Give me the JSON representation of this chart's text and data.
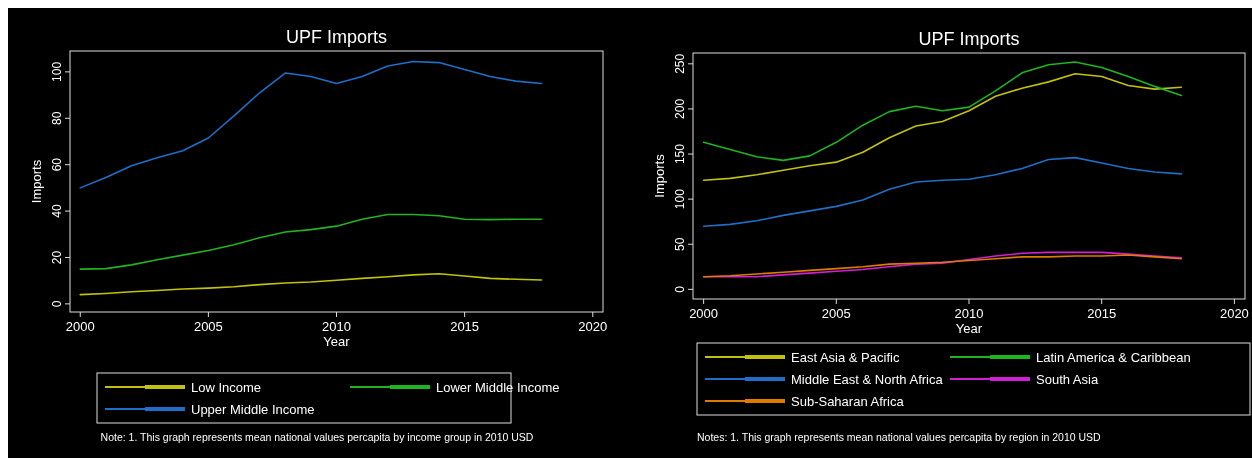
{
  "chart_data": [
    {
      "type": "line",
      "title": "UPF Imports",
      "xlabel": "Year",
      "ylabel": "Imports",
      "x": [
        2000,
        2001,
        2002,
        2003,
        2004,
        2005,
        2006,
        2007,
        2008,
        2009,
        2010,
        2011,
        2012,
        2013,
        2014,
        2015,
        2016,
        2017,
        2018
      ],
      "xlim": [
        1999.6,
        2020.4
      ],
      "xticks": [
        2000,
        2005,
        2010,
        2015,
        2020
      ],
      "ylim": [
        -3.5,
        109
      ],
      "yticks": [
        0,
        20,
        40,
        60,
        80,
        100
      ],
      "grid": false,
      "legend": "bottom",
      "annotations": [
        "Note: 1. This graph represents mean national values percapita by income group in 2010 USD"
      ],
      "series": [
        {
          "name": "Low Income",
          "color": "#c2c20e",
          "values": [
            4,
            4.5,
            5.2,
            5.8,
            6.4,
            6.8,
            7.4,
            8.3,
            9,
            9.4,
            10.2,
            11,
            11.7,
            12.5,
            13,
            12,
            11,
            10.6,
            10.3
          ]
        },
        {
          "name": "Lower Middle Income",
          "color": "#1fb51f",
          "values": [
            15,
            15.2,
            16.8,
            19,
            21,
            23,
            25.5,
            28.5,
            31,
            32,
            33.5,
            36.5,
            38.5,
            38.5,
            38,
            36.5,
            36.3,
            36.5,
            36.5
          ]
        },
        {
          "name": "Upper Middle Income",
          "color": "#1f6fc8",
          "values": [
            50,
            54.5,
            59.5,
            63,
            66,
            71.5,
            81,
            91,
            99.5,
            98,
            95,
            98,
            102.5,
            104.5,
            104,
            101,
            98,
            96,
            95
          ]
        }
      ]
    },
    {
      "type": "line",
      "title": "UPF Imports",
      "xlabel": "Year",
      "ylabel": "Imports",
      "x": [
        2000,
        2001,
        2002,
        2003,
        2004,
        2005,
        2006,
        2007,
        2008,
        2009,
        2010,
        2011,
        2012,
        2013,
        2014,
        2015,
        2016,
        2017,
        2018
      ],
      "xlim": [
        1999.6,
        2020.4
      ],
      "xticks": [
        2000,
        2005,
        2010,
        2015,
        2020
      ],
      "ylim": [
        -10.7,
        262
      ],
      "yticks": [
        0,
        50,
        100,
        150,
        200,
        250
      ],
      "grid": false,
      "legend": "bottom",
      "annotations": [
        "Notes: 1. This graph represents mean national values percapita by region in 2010 USD"
      ],
      "series": [
        {
          "name": "East Asia & Pacific",
          "color": "#c2c20e",
          "values": [
            121,
            123,
            127,
            132,
            137,
            141,
            152,
            168,
            181,
            186,
            198,
            214,
            223,
            230,
            239,
            236,
            226,
            222,
            224
          ]
        },
        {
          "name": "Latin America & Caribbean",
          "color": "#1fb51f",
          "values": [
            163,
            155,
            147,
            143,
            148,
            163,
            182,
            197,
            203,
            198,
            202,
            220,
            240,
            249,
            252,
            246,
            236,
            225,
            215
          ]
        },
        {
          "name": "Middle East & North Africa",
          "color": "#1f6fc8",
          "values": [
            70,
            72,
            76,
            82,
            87,
            92,
            99,
            111,
            119,
            121,
            122,
            127,
            134,
            144,
            146,
            140,
            134,
            130,
            128
          ]
        },
        {
          "name": "South Asia",
          "color": "#d21fd2",
          "values": [
            14,
            14,
            14,
            16,
            18,
            20,
            22,
            25,
            28,
            29,
            33,
            37,
            40,
            41,
            41,
            41,
            39,
            37,
            35
          ]
        },
        {
          "name": "Sub-Saharan Africa",
          "color": "#e07b00",
          "values": [
            14,
            15,
            17,
            19,
            21,
            23,
            25,
            28,
            29,
            30,
            32,
            34,
            36,
            36,
            37,
            37,
            38,
            36,
            34
          ]
        }
      ]
    }
  ]
}
